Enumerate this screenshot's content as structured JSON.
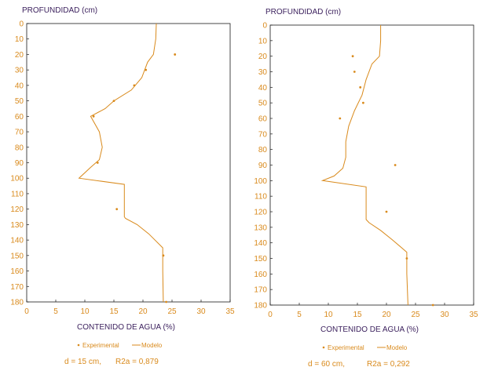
{
  "colors": {
    "accent": "#d98a1c",
    "axis_title": "#3a1f5c",
    "frame": "#1a1a1a"
  },
  "chart_data": [
    {
      "type": "line",
      "ylabel": "PROFUNDIDAD (cm)",
      "xlabel": "CONTENIDO DE AGUA (%)",
      "xlim": [
        0,
        35
      ],
      "ylim": [
        0,
        180
      ],
      "y_inverted": true,
      "x_ticks": [
        0,
        5,
        10,
        15,
        20,
        25,
        30,
        35
      ],
      "y_ticks": [
        0,
        10,
        20,
        30,
        40,
        50,
        60,
        70,
        80,
        90,
        100,
        110,
        120,
        130,
        140,
        150,
        160,
        170,
        180
      ],
      "grid": false,
      "legend": {
        "experimental": "Experimental",
        "modelo": "Modelo",
        "placement": "bottom"
      },
      "caption": {
        "d": "d = 15 cm,",
        "r2": "R2a = 0,879"
      },
      "series": [
        {
          "name": "Experimental",
          "kind": "scatter",
          "points": [
            [
              25.5,
              20
            ],
            [
              20.5,
              30
            ],
            [
              18.5,
              40
            ],
            [
              15,
              50
            ],
            [
              11.5,
              60
            ],
            [
              12.2,
              90
            ],
            [
              15.5,
              120
            ],
            [
              23.5,
              150
            ],
            [
              24,
              180
            ]
          ]
        },
        {
          "name": "Modelo",
          "kind": "line",
          "points": [
            [
              22.3,
              0
            ],
            [
              22.2,
              10
            ],
            [
              21.8,
              20
            ],
            [
              20.8,
              25
            ],
            [
              19.8,
              35
            ],
            [
              18,
              43
            ],
            [
              15,
              50
            ],
            [
              13.5,
              55
            ],
            [
              11,
              60
            ],
            [
              12.5,
              70
            ],
            [
              13,
              80
            ],
            [
              12.5,
              88
            ],
            [
              11,
              93
            ],
            [
              9,
              100
            ],
            [
              16.8,
              104
            ],
            [
              16.8,
              115
            ],
            [
              16.8,
              125
            ],
            [
              17,
              126
            ],
            [
              19,
              130
            ],
            [
              21,
              136
            ],
            [
              23.4,
              145
            ],
            [
              23.4,
              160
            ],
            [
              23.5,
              180
            ]
          ]
        }
      ]
    },
    {
      "type": "line",
      "ylabel": "PROFUNDIDAD (cm)",
      "xlabel": "CONTENIDO DE AGUA (%)",
      "xlim": [
        0,
        35
      ],
      "ylim": [
        0,
        180
      ],
      "y_inverted": true,
      "x_ticks": [
        0,
        5,
        10,
        15,
        20,
        25,
        30,
        35
      ],
      "y_ticks": [
        0,
        10,
        20,
        30,
        40,
        50,
        60,
        70,
        80,
        90,
        100,
        110,
        120,
        130,
        140,
        150,
        160,
        170,
        180
      ],
      "grid": false,
      "legend": {
        "experimental": "Experimental",
        "modelo": "Modelo",
        "placement": "bottom"
      },
      "caption": {
        "d": "d = 60 cm,",
        "r2": "R2a = 0,292"
      },
      "series": [
        {
          "name": "Experimental",
          "kind": "scatter",
          "points": [
            [
              14.2,
              20
            ],
            [
              14.5,
              30
            ],
            [
              15.5,
              40
            ],
            [
              16,
              50
            ],
            [
              12,
              60
            ],
            [
              21.5,
              90
            ],
            [
              20,
              120
            ],
            [
              23.5,
              150
            ],
            [
              28,
              180
            ]
          ]
        },
        {
          "name": "Modelo",
          "kind": "line",
          "points": [
            [
              19,
              0
            ],
            [
              19,
              10
            ],
            [
              18.8,
              20
            ],
            [
              17.5,
              25
            ],
            [
              16.5,
              35
            ],
            [
              15.8,
              45
            ],
            [
              14.5,
              55
            ],
            [
              13.5,
              65
            ],
            [
              13,
              75
            ],
            [
              13,
              85
            ],
            [
              12.5,
              92
            ],
            [
              11,
              97
            ],
            [
              9,
              100
            ],
            [
              16.5,
              104
            ],
            [
              16.5,
              115
            ],
            [
              16.5,
              125
            ],
            [
              17,
              127
            ],
            [
              19,
              132
            ],
            [
              21,
              138
            ],
            [
              23.5,
              146
            ],
            [
              23.5,
              160
            ],
            [
              23.7,
              180
            ]
          ]
        }
      ]
    }
  ]
}
